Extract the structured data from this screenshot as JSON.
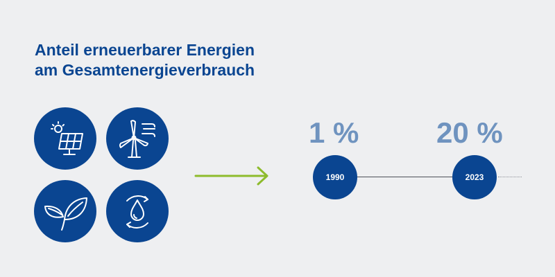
{
  "title": {
    "line1": "Anteil erneuerbarer Energien",
    "line2": "am Gesamtenergieverbrauch"
  },
  "icons": [
    "solar-panel-icon",
    "wind-turbine-icon",
    "leaf-icon",
    "water-cycle-icon"
  ],
  "colors": {
    "background": "#eeeff1",
    "primary": "#0a4591",
    "value_text": "#6f93bf",
    "arrow": "#8dbb2c"
  },
  "timeline": [
    {
      "year": "1990",
      "share": "1 %"
    },
    {
      "year": "2023",
      "share": "20 %"
    }
  ]
}
